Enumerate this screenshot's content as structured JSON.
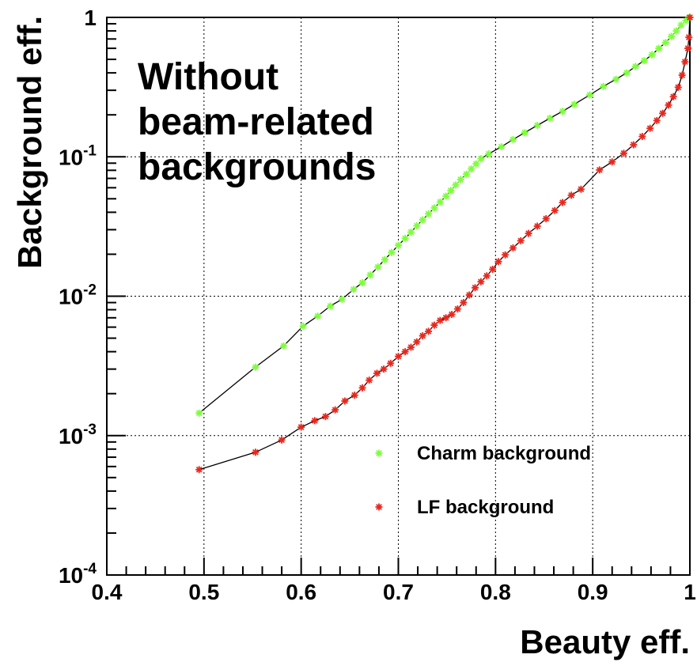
{
  "chart_data": {
    "type": "line",
    "xlabel": "Beauty eff.",
    "ylabel": "Background eff.",
    "xlim": [
      0.4,
      1.0
    ],
    "ylim": [
      0.0001,
      1
    ],
    "yscale": "log",
    "grid": true,
    "x_ticks": [
      {
        "value": 0.4,
        "label": "0.4"
      },
      {
        "value": 0.5,
        "label": "0.5"
      },
      {
        "value": 0.6,
        "label": "0.6"
      },
      {
        "value": 0.7,
        "label": "0.7"
      },
      {
        "value": 0.8,
        "label": "0.8"
      },
      {
        "value": 0.9,
        "label": "0.9"
      },
      {
        "value": 1.0,
        "label": "1"
      }
    ],
    "y_ticks": [
      {
        "value": 0.0001,
        "mantissa": "10",
        "exp": "-4"
      },
      {
        "value": 0.001,
        "mantissa": "10",
        "exp": "-3"
      },
      {
        "value": 0.01,
        "mantissa": "10",
        "exp": "-2"
      },
      {
        "value": 0.1,
        "mantissa": "10",
        "exp": "-1"
      },
      {
        "value": 1,
        "mantissa": "1",
        "exp": ""
      }
    ],
    "annotation": [
      "Without",
      "beam-related",
      "backgrounds"
    ],
    "legend_position": "bottom-right",
    "series": [
      {
        "name": "Charm background",
        "color": "#7dff3c",
        "marker": "*",
        "points": [
          [
            0.495,
            0.00145
          ],
          [
            0.553,
            0.0031
          ],
          [
            0.582,
            0.0044
          ],
          [
            0.602,
            0.0061
          ],
          [
            0.617,
            0.0072
          ],
          [
            0.63,
            0.0085
          ],
          [
            0.642,
            0.0095
          ],
          [
            0.654,
            0.0112
          ],
          [
            0.663,
            0.0125
          ],
          [
            0.671,
            0.0142
          ],
          [
            0.679,
            0.0162
          ],
          [
            0.686,
            0.0183
          ],
          [
            0.693,
            0.0206
          ],
          [
            0.7,
            0.0232
          ],
          [
            0.707,
            0.026
          ],
          [
            0.713,
            0.0288
          ],
          [
            0.719,
            0.032
          ],
          [
            0.725,
            0.0353
          ],
          [
            0.731,
            0.039
          ],
          [
            0.737,
            0.043
          ],
          [
            0.743,
            0.0474
          ],
          [
            0.749,
            0.0522
          ],
          [
            0.754,
            0.0573
          ],
          [
            0.759,
            0.0628
          ],
          [
            0.764,
            0.0687
          ],
          [
            0.77,
            0.075
          ],
          [
            0.775,
            0.0818
          ],
          [
            0.78,
            0.089
          ],
          [
            0.785,
            0.0968
          ],
          [
            0.793,
            0.105
          ],
          [
            0.806,
            0.118
          ],
          [
            0.818,
            0.133
          ],
          [
            0.83,
            0.149
          ],
          [
            0.843,
            0.168
          ],
          [
            0.856,
            0.189
          ],
          [
            0.869,
            0.212
          ],
          [
            0.881,
            0.238
          ],
          [
            0.897,
            0.278
          ],
          [
            0.911,
            0.32
          ],
          [
            0.924,
            0.36
          ],
          [
            0.935,
            0.4
          ],
          [
            0.944,
            0.445
          ],
          [
            0.953,
            0.49
          ],
          [
            0.961,
            0.54
          ],
          [
            0.968,
            0.6
          ],
          [
            0.975,
            0.66
          ],
          [
            0.981,
            0.73
          ],
          [
            0.986,
            0.8
          ],
          [
            0.991,
            0.88
          ],
          [
            0.996,
            0.95
          ],
          [
            0.999,
            0.995
          ]
        ]
      },
      {
        "name": "LF background",
        "color": "#e8281e",
        "marker": "*",
        "points": [
          [
            0.495,
            0.00057
          ],
          [
            0.553,
            0.00076
          ],
          [
            0.58,
            0.00093
          ],
          [
            0.6,
            0.00115
          ],
          [
            0.614,
            0.00128
          ],
          [
            0.625,
            0.00137
          ],
          [
            0.635,
            0.00153
          ],
          [
            0.645,
            0.00177
          ],
          [
            0.655,
            0.00195
          ],
          [
            0.663,
            0.0022
          ],
          [
            0.67,
            0.0025
          ],
          [
            0.678,
            0.0028
          ],
          [
            0.685,
            0.003
          ],
          [
            0.692,
            0.0033
          ],
          [
            0.7,
            0.0037
          ],
          [
            0.707,
            0.004
          ],
          [
            0.713,
            0.0043
          ],
          [
            0.719,
            0.0047
          ],
          [
            0.725,
            0.0052
          ],
          [
            0.731,
            0.0056
          ],
          [
            0.737,
            0.0062
          ],
          [
            0.743,
            0.0067
          ],
          [
            0.749,
            0.007
          ],
          [
            0.755,
            0.0074
          ],
          [
            0.761,
            0.0081
          ],
          [
            0.767,
            0.009
          ],
          [
            0.773,
            0.0102
          ],
          [
            0.779,
            0.0115
          ],
          [
            0.785,
            0.0127
          ],
          [
            0.791,
            0.014
          ],
          [
            0.797,
            0.0156
          ],
          [
            0.803,
            0.0177
          ],
          [
            0.81,
            0.0198
          ],
          [
            0.818,
            0.0222
          ],
          [
            0.826,
            0.025
          ],
          [
            0.834,
            0.0282
          ],
          [
            0.843,
            0.0318
          ],
          [
            0.852,
            0.036
          ],
          [
            0.861,
            0.0412
          ],
          [
            0.869,
            0.047
          ],
          [
            0.878,
            0.053
          ],
          [
            0.888,
            0.0585
          ],
          [
            0.907,
            0.0805
          ],
          [
            0.92,
            0.092
          ],
          [
            0.932,
            0.106
          ],
          [
            0.942,
            0.122
          ],
          [
            0.951,
            0.14
          ],
          [
            0.959,
            0.16
          ],
          [
            0.966,
            0.182
          ],
          [
            0.972,
            0.205
          ],
          [
            0.978,
            0.235
          ],
          [
            0.983,
            0.27
          ],
          [
            0.988,
            0.315
          ],
          [
            0.992,
            0.385
          ],
          [
            0.995,
            0.48
          ],
          [
            0.998,
            0.6
          ],
          [
            0.999,
            0.72
          ],
          [
            1.0,
            1.0
          ]
        ]
      }
    ]
  }
}
